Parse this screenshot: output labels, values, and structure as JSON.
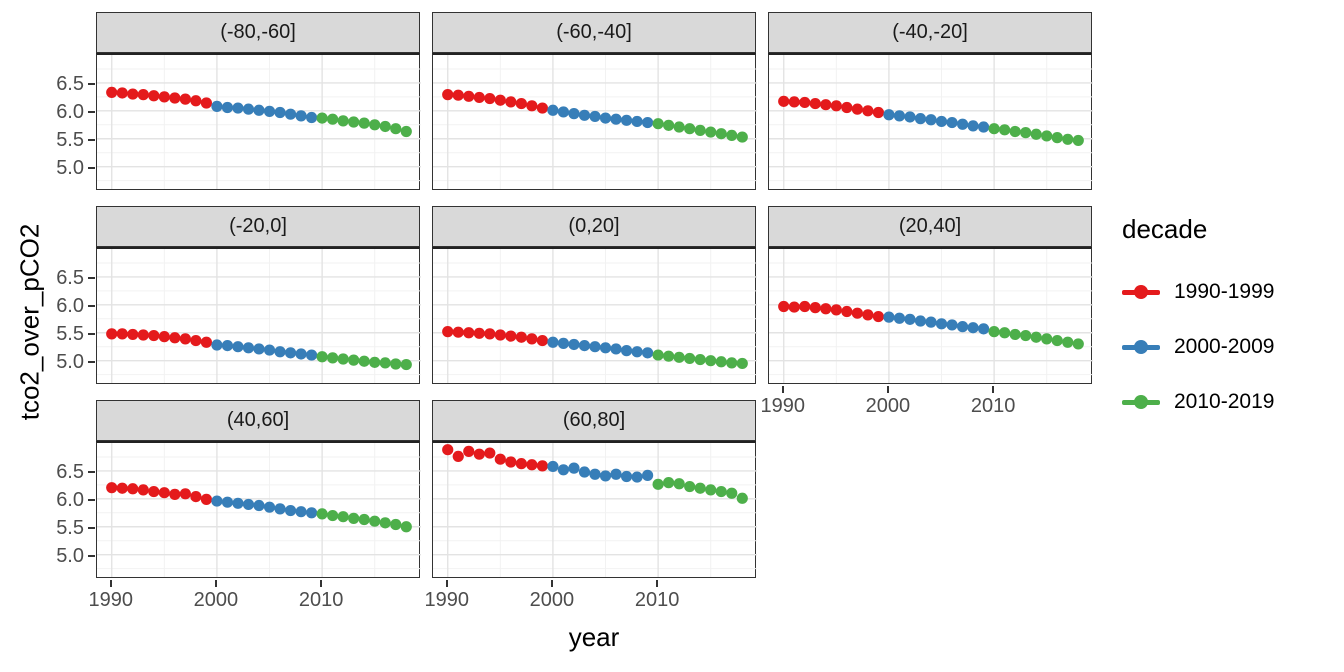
{
  "figure": {
    "x_axis_title": "year",
    "y_axis_title": "tco2_over_pCO2",
    "legend": {
      "title": "decade",
      "entries": [
        {
          "label": "1990-1999",
          "color": "#E41A1C"
        },
        {
          "label": "2000-2009",
          "color": "#377EB8"
        },
        {
          "label": "2010-2019",
          "color": "#4DAF4A"
        }
      ]
    },
    "colors": {
      "strip_background": "#D9D9D9",
      "panel_border": "#333333",
      "grid_major": "#E3E3E3",
      "grid_minor": "#F2F2F2",
      "tick_label": "#4D4D4D"
    }
  },
  "chart_data": {
    "type": "scatter",
    "title": "",
    "xlabel": "year",
    "ylabel": "tco2_over_pCO2",
    "legend_title": "decade",
    "legend_position": "right",
    "grid": true,
    "x_ticks": [
      1990,
      2000,
      2010
    ],
    "y_ticks": [
      5.0,
      5.5,
      6.0,
      6.5
    ],
    "x_minor_ticks": [
      1995,
      2005,
      2015
    ],
    "y_minor_ticks": [
      4.75,
      5.25,
      5.75,
      6.25,
      6.75
    ],
    "xlim": [
      1988.6,
      2019.4
    ],
    "ylim": [
      4.6,
      7.0
    ],
    "years": [
      1990,
      1991,
      1992,
      1993,
      1994,
      1995,
      1996,
      1997,
      1998,
      1999,
      2000,
      2001,
      2002,
      2003,
      2004,
      2005,
      2006,
      2007,
      2008,
      2009,
      2010,
      2011,
      2012,
      2013,
      2014,
      2015,
      2016,
      2017,
      2018
    ],
    "decades": [
      {
        "label": "1990-1999",
        "start": 1990,
        "end": 1999,
        "color": "#E41A1C"
      },
      {
        "label": "2000-2009",
        "start": 2000,
        "end": 2009,
        "color": "#377EB8"
      },
      {
        "label": "2010-2019",
        "start": 2010,
        "end": 2019,
        "color": "#4DAF4A"
      }
    ],
    "facets": [
      {
        "label": "(-80,-60]",
        "values": [
          6.33,
          6.32,
          6.3,
          6.29,
          6.27,
          6.25,
          6.23,
          6.21,
          6.18,
          6.14,
          6.08,
          6.06,
          6.05,
          6.03,
          6.01,
          5.99,
          5.97,
          5.94,
          5.91,
          5.88,
          5.87,
          5.85,
          5.82,
          5.8,
          5.78,
          5.75,
          5.72,
          5.68,
          5.63
        ]
      },
      {
        "label": "(-60,-40]",
        "values": [
          6.29,
          6.28,
          6.26,
          6.24,
          6.22,
          6.19,
          6.16,
          6.13,
          6.09,
          6.05,
          6.01,
          5.98,
          5.95,
          5.92,
          5.9,
          5.87,
          5.85,
          5.83,
          5.81,
          5.79,
          5.77,
          5.74,
          5.71,
          5.68,
          5.65,
          5.62,
          5.59,
          5.56,
          5.53
        ]
      },
      {
        "label": "(-40,-20]",
        "values": [
          6.17,
          6.16,
          6.15,
          6.13,
          6.11,
          6.09,
          6.06,
          6.03,
          6.0,
          5.97,
          5.93,
          5.91,
          5.89,
          5.86,
          5.84,
          5.81,
          5.79,
          5.76,
          5.73,
          5.71,
          5.68,
          5.66,
          5.63,
          5.61,
          5.58,
          5.55,
          5.52,
          5.49,
          5.47
        ]
      },
      {
        "label": "(-20,0]",
        "values": [
          5.48,
          5.48,
          5.47,
          5.46,
          5.45,
          5.43,
          5.41,
          5.39,
          5.36,
          5.33,
          5.28,
          5.27,
          5.25,
          5.23,
          5.21,
          5.19,
          5.16,
          5.14,
          5.12,
          5.1,
          5.07,
          5.05,
          5.03,
          5.01,
          4.99,
          4.97,
          4.96,
          4.94,
          4.93
        ]
      },
      {
        "label": "(0,20]",
        "values": [
          5.52,
          5.51,
          5.5,
          5.49,
          5.48,
          5.46,
          5.44,
          5.42,
          5.39,
          5.36,
          5.33,
          5.31,
          5.29,
          5.27,
          5.25,
          5.23,
          5.21,
          5.18,
          5.16,
          5.14,
          5.1,
          5.08,
          5.06,
          5.04,
          5.02,
          5.0,
          4.98,
          4.96,
          4.95
        ]
      },
      {
        "label": "(20,40]",
        "values": [
          5.97,
          5.96,
          5.97,
          5.95,
          5.93,
          5.91,
          5.88,
          5.85,
          5.82,
          5.79,
          5.78,
          5.76,
          5.74,
          5.71,
          5.69,
          5.66,
          5.64,
          5.61,
          5.59,
          5.57,
          5.52,
          5.5,
          5.47,
          5.45,
          5.42,
          5.39,
          5.36,
          5.33,
          5.3
        ]
      },
      {
        "label": "(40,60]",
        "values": [
          6.2,
          6.19,
          6.18,
          6.16,
          6.13,
          6.11,
          6.08,
          6.09,
          6.04,
          5.99,
          5.96,
          5.94,
          5.92,
          5.9,
          5.88,
          5.85,
          5.82,
          5.79,
          5.77,
          5.75,
          5.73,
          5.7,
          5.68,
          5.65,
          5.63,
          5.6,
          5.57,
          5.54,
          5.5
        ]
      },
      {
        "label": "(60,80]",
        "values": [
          6.88,
          6.76,
          6.85,
          6.8,
          6.82,
          6.71,
          6.66,
          6.63,
          6.61,
          6.59,
          6.58,
          6.52,
          6.55,
          6.48,
          6.44,
          6.41,
          6.44,
          6.4,
          6.39,
          6.42,
          6.26,
          6.29,
          6.27,
          6.22,
          6.19,
          6.16,
          6.13,
          6.1,
          6.01
        ]
      }
    ]
  }
}
